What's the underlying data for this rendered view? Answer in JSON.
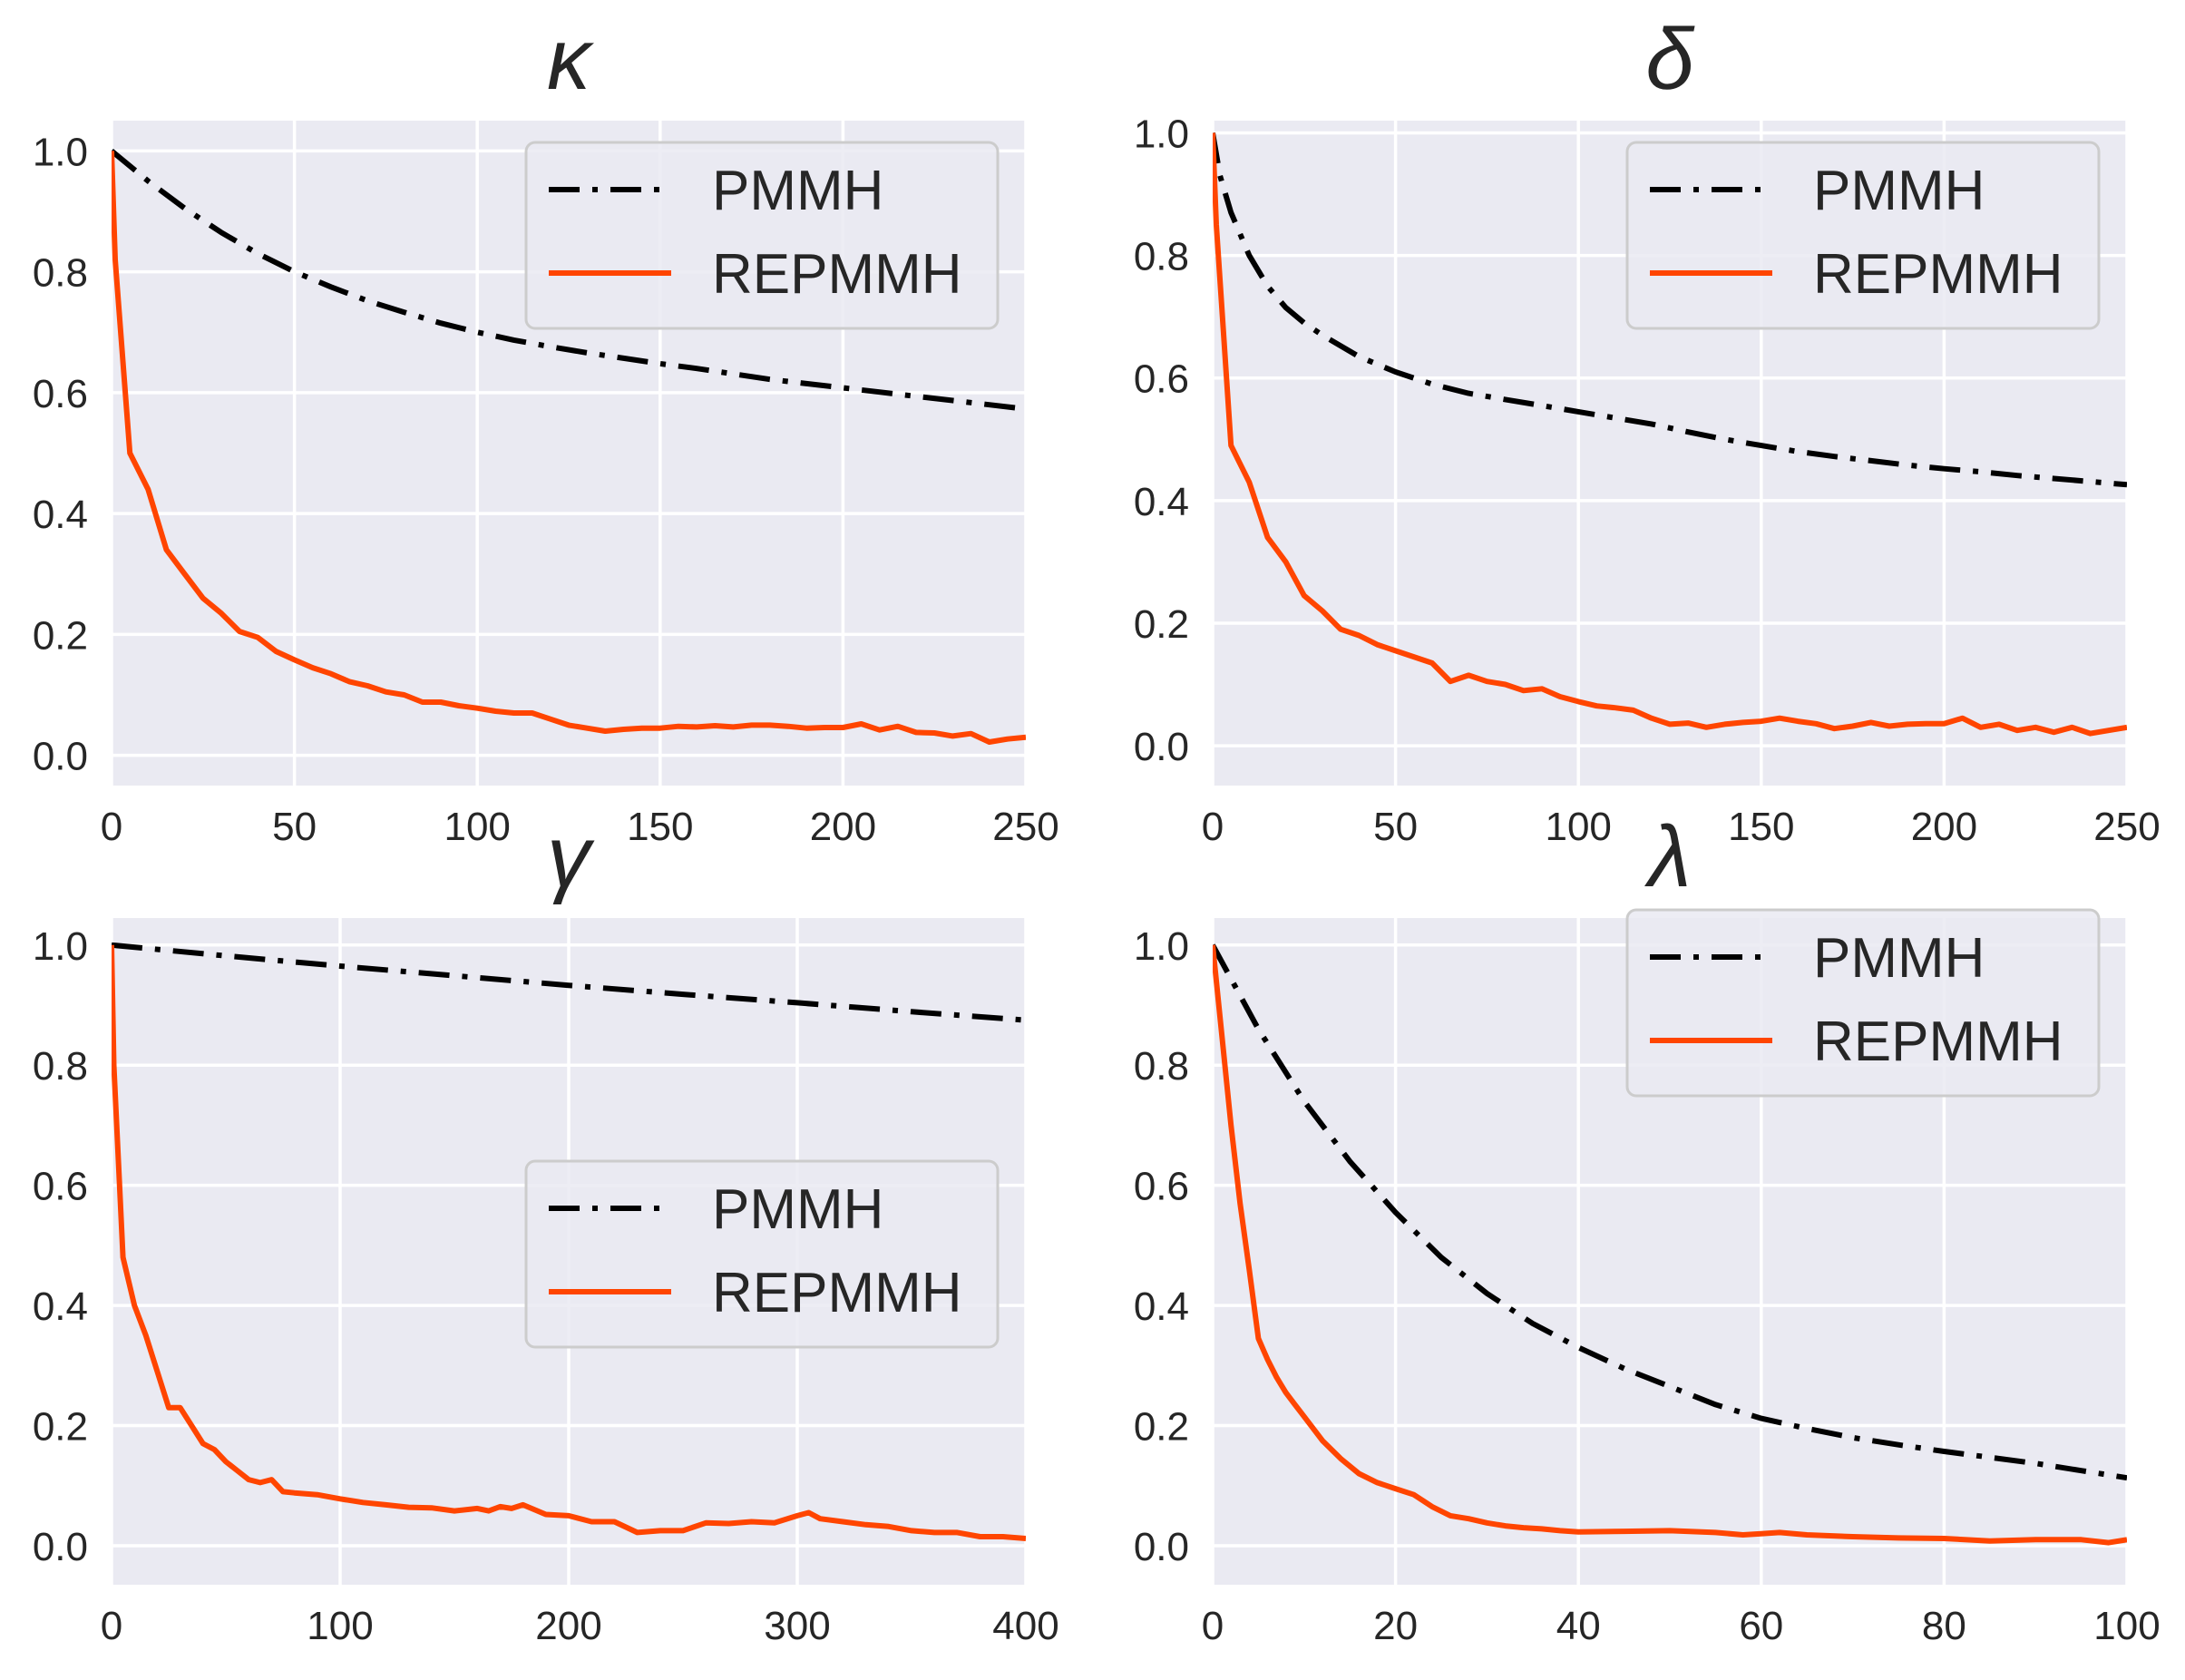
{
  "colors": {
    "panel_bg": "#EAEAF2",
    "grid": "#FFFFFF",
    "pmmh": "#000000",
    "repmmh": "#FF4500",
    "text": "#262626",
    "legend_edge": "#CCCCCC"
  },
  "chart_data": [
    {
      "type": "line",
      "title": "κ",
      "xlabel": "",
      "ylabel": "",
      "xlim": [
        0,
        250
      ],
      "ylim": [
        -0.05,
        1.05
      ],
      "xticks": [
        0,
        50,
        100,
        150,
        200,
        250
      ],
      "xtick_labels": [
        "0",
        "50",
        "100",
        "150",
        "200",
        "250"
      ],
      "yticks": [
        0.0,
        0.2,
        0.4,
        0.6,
        0.8,
        1.0
      ],
      "ytick_labels": [
        "0.0",
        "0.2",
        "0.4",
        "0.6",
        "0.8",
        "1.0"
      ],
      "grid": true,
      "legend_position": "top-right",
      "series": [
        {
          "name": "PMMH",
          "style": "dashdot",
          "x": [
            0,
            10,
            20,
            30,
            40,
            50,
            60,
            70,
            80,
            90,
            100,
            110,
            120,
            130,
            140,
            150,
            160,
            170,
            180,
            190,
            200,
            210,
            220,
            230,
            240,
            250
          ],
          "y": [
            1.0,
            0.95,
            0.905,
            0.865,
            0.83,
            0.8,
            0.775,
            0.752,
            0.733,
            0.715,
            0.7,
            0.687,
            0.676,
            0.666,
            0.657,
            0.648,
            0.64,
            0.631,
            0.622,
            0.615,
            0.608,
            0.601,
            0.594,
            0.587,
            0.58,
            0.573
          ]
        },
        {
          "name": "REPMMH",
          "style": "solid",
          "x": [
            0,
            1,
            5,
            10,
            15,
            20,
            25,
            30,
            35,
            40,
            45,
            50,
            55,
            60,
            65,
            70,
            75,
            80,
            85,
            90,
            95,
            100,
            105,
            110,
            115,
            120,
            125,
            130,
            135,
            140,
            145,
            150,
            155,
            160,
            165,
            170,
            175,
            180,
            185,
            190,
            195,
            200,
            205,
            210,
            215,
            220,
            225,
            230,
            235,
            240,
            245,
            250
          ],
          "y": [
            1.0,
            0.82,
            0.5,
            0.44,
            0.34,
            0.3,
            0.26,
            0.235,
            0.205,
            0.195,
            0.172,
            0.158,
            0.145,
            0.135,
            0.122,
            0.115,
            0.105,
            0.1,
            0.088,
            0.088,
            0.082,
            0.078,
            0.073,
            0.07,
            0.07,
            0.06,
            0.05,
            0.045,
            0.04,
            0.043,
            0.045,
            0.045,
            0.048,
            0.047,
            0.049,
            0.047,
            0.05,
            0.05,
            0.048,
            0.045,
            0.046,
            0.046,
            0.052,
            0.042,
            0.048,
            0.038,
            0.037,
            0.032,
            0.036,
            0.022,
            0.027,
            0.03
          ]
        }
      ]
    },
    {
      "type": "line",
      "title": "δ",
      "xlabel": "",
      "ylabel": "",
      "xlim": [
        0,
        250
      ],
      "ylim": [
        -0.065,
        1.02
      ],
      "xticks": [
        0,
        50,
        100,
        150,
        200,
        250
      ],
      "xtick_labels": [
        "0",
        "50",
        "100",
        "150",
        "200",
        "250"
      ],
      "yticks": [
        0.0,
        0.2,
        0.4,
        0.6,
        0.8,
        1.0
      ],
      "ytick_labels": [
        "0.0",
        "0.2",
        "0.4",
        "0.6",
        "0.8",
        "1.0"
      ],
      "grid": true,
      "legend_position": "top-right",
      "series": [
        {
          "name": "PMMH",
          "style": "dashdot",
          "x": [
            0,
            2,
            5,
            10,
            15,
            20,
            25,
            30,
            40,
            50,
            60,
            70,
            80,
            90,
            100,
            110,
            120,
            130,
            140,
            150,
            160,
            170,
            180,
            190,
            200,
            210,
            220,
            230,
            240,
            250
          ],
          "y": [
            1.0,
            0.93,
            0.87,
            0.8,
            0.75,
            0.715,
            0.69,
            0.67,
            0.635,
            0.61,
            0.59,
            0.575,
            0.565,
            0.555,
            0.545,
            0.535,
            0.525,
            0.512,
            0.5,
            0.49,
            0.48,
            0.472,
            0.465,
            0.458,
            0.452,
            0.447,
            0.441,
            0.436,
            0.431,
            0.426
          ]
        },
        {
          "name": "REPMMH",
          "style": "solid",
          "x": [
            0,
            1,
            5,
            10,
            15,
            20,
            25,
            30,
            35,
            40,
            45,
            50,
            55,
            60,
            65,
            70,
            75,
            80,
            85,
            90,
            95,
            100,
            105,
            110,
            115,
            120,
            125,
            130,
            135,
            140,
            145,
            150,
            155,
            160,
            165,
            170,
            175,
            180,
            185,
            190,
            195,
            200,
            205,
            210,
            215,
            220,
            225,
            230,
            235,
            240,
            245,
            250
          ],
          "y": [
            1.0,
            0.85,
            0.49,
            0.43,
            0.34,
            0.3,
            0.245,
            0.22,
            0.19,
            0.18,
            0.165,
            0.155,
            0.145,
            0.135,
            0.105,
            0.115,
            0.105,
            0.1,
            0.09,
            0.093,
            0.08,
            0.072,
            0.065,
            0.062,
            0.058,
            0.045,
            0.035,
            0.037,
            0.03,
            0.035,
            0.038,
            0.04,
            0.045,
            0.04,
            0.036,
            0.028,
            0.032,
            0.038,
            0.032,
            0.035,
            0.036,
            0.036,
            0.045,
            0.03,
            0.035,
            0.025,
            0.03,
            0.022,
            0.03,
            0.02,
            0.025,
            0.03
          ]
        }
      ]
    },
    {
      "type": "line",
      "title": "γ",
      "xlabel": "",
      "ylabel": "",
      "xlim": [
        0,
        400
      ],
      "ylim": [
        -0.065,
        1.045
      ],
      "xticks": [
        0,
        100,
        200,
        300,
        400
      ],
      "xtick_labels": [
        "0",
        "100",
        "200",
        "300",
        "400"
      ],
      "yticks": [
        0.0,
        0.2,
        0.4,
        0.6,
        0.8,
        1.0
      ],
      "ytick_labels": [
        "0.0",
        "0.2",
        "0.4",
        "0.6",
        "0.8",
        "1.0"
      ],
      "grid": true,
      "legend_position": "center-right",
      "series": [
        {
          "name": "PMMH",
          "style": "dashdot",
          "x": [
            0,
            50,
            100,
            150,
            200,
            250,
            300,
            350,
            400
          ],
          "y": [
            1.0,
            0.982,
            0.965,
            0.949,
            0.933,
            0.918,
            0.904,
            0.889,
            0.875
          ]
        },
        {
          "name": "REPMMH",
          "style": "solid",
          "x": [
            0,
            1,
            5,
            10,
            15,
            20,
            25,
            30,
            35,
            40,
            45,
            50,
            55,
            60,
            65,
            70,
            75,
            80,
            90,
            100,
            110,
            120,
            130,
            140,
            150,
            160,
            165,
            170,
            175,
            180,
            190,
            200,
            210,
            220,
            230,
            240,
            250,
            260,
            270,
            280,
            290,
            300,
            305,
            310,
            320,
            330,
            340,
            350,
            360,
            370,
            380,
            390,
            400
          ],
          "y": [
            1.0,
            0.8,
            0.48,
            0.4,
            0.35,
            0.29,
            0.23,
            0.23,
            0.2,
            0.17,
            0.16,
            0.14,
            0.125,
            0.11,
            0.105,
            0.11,
            0.09,
            0.088,
            0.085,
            0.078,
            0.072,
            0.068,
            0.064,
            0.063,
            0.058,
            0.062,
            0.058,
            0.065,
            0.062,
            0.068,
            0.052,
            0.05,
            0.04,
            0.04,
            0.022,
            0.025,
            0.025,
            0.038,
            0.037,
            0.04,
            0.038,
            0.05,
            0.055,
            0.045,
            0.04,
            0.035,
            0.032,
            0.025,
            0.022,
            0.022,
            0.015,
            0.015,
            0.012
          ]
        }
      ]
    },
    {
      "type": "line",
      "title": "λ",
      "xlabel": "",
      "ylabel": "",
      "xlim": [
        0,
        100
      ],
      "ylim": [
        -0.065,
        1.045
      ],
      "xticks": [
        0,
        20,
        40,
        60,
        80,
        100
      ],
      "xtick_labels": [
        "0",
        "20",
        "40",
        "60",
        "80",
        "100"
      ],
      "yticks": [
        0.0,
        0.2,
        0.4,
        0.6,
        0.8,
        1.0
      ],
      "ytick_labels": [
        "0.0",
        "0.2",
        "0.4",
        "0.6",
        "0.8",
        "1.0"
      ],
      "grid": true,
      "legend_position": "top-right",
      "series": [
        {
          "name": "PMMH",
          "style": "dashdot",
          "x": [
            0,
            5,
            10,
            15,
            20,
            25,
            30,
            35,
            40,
            45,
            50,
            55,
            60,
            65,
            70,
            75,
            80,
            85,
            90,
            95,
            100
          ],
          "y": [
            1.0,
            0.86,
            0.74,
            0.64,
            0.555,
            0.48,
            0.42,
            0.37,
            0.33,
            0.295,
            0.265,
            0.235,
            0.212,
            0.195,
            0.18,
            0.168,
            0.157,
            0.147,
            0.137,
            0.125,
            0.113
          ]
        },
        {
          "name": "REPMMH",
          "style": "solid",
          "x": [
            0,
            1,
            2,
            3,
            4,
            5,
            6,
            7,
            8,
            9,
            10,
            12,
            14,
            16,
            18,
            20,
            22,
            24,
            26,
            28,
            30,
            32,
            34,
            36,
            38,
            40,
            45,
            50,
            55,
            58,
            60,
            62,
            65,
            70,
            75,
            80,
            85,
            90,
            95,
            98,
            100
          ],
          "y": [
            1.0,
            0.85,
            0.7,
            0.57,
            0.46,
            0.345,
            0.31,
            0.28,
            0.255,
            0.235,
            0.215,
            0.175,
            0.145,
            0.12,
            0.105,
            0.095,
            0.085,
            0.065,
            0.05,
            0.045,
            0.038,
            0.033,
            0.03,
            0.028,
            0.025,
            0.023,
            0.024,
            0.025,
            0.022,
            0.018,
            0.02,
            0.022,
            0.018,
            0.015,
            0.013,
            0.012,
            0.008,
            0.01,
            0.01,
            0.005,
            0.01
          ]
        }
      ]
    }
  ]
}
